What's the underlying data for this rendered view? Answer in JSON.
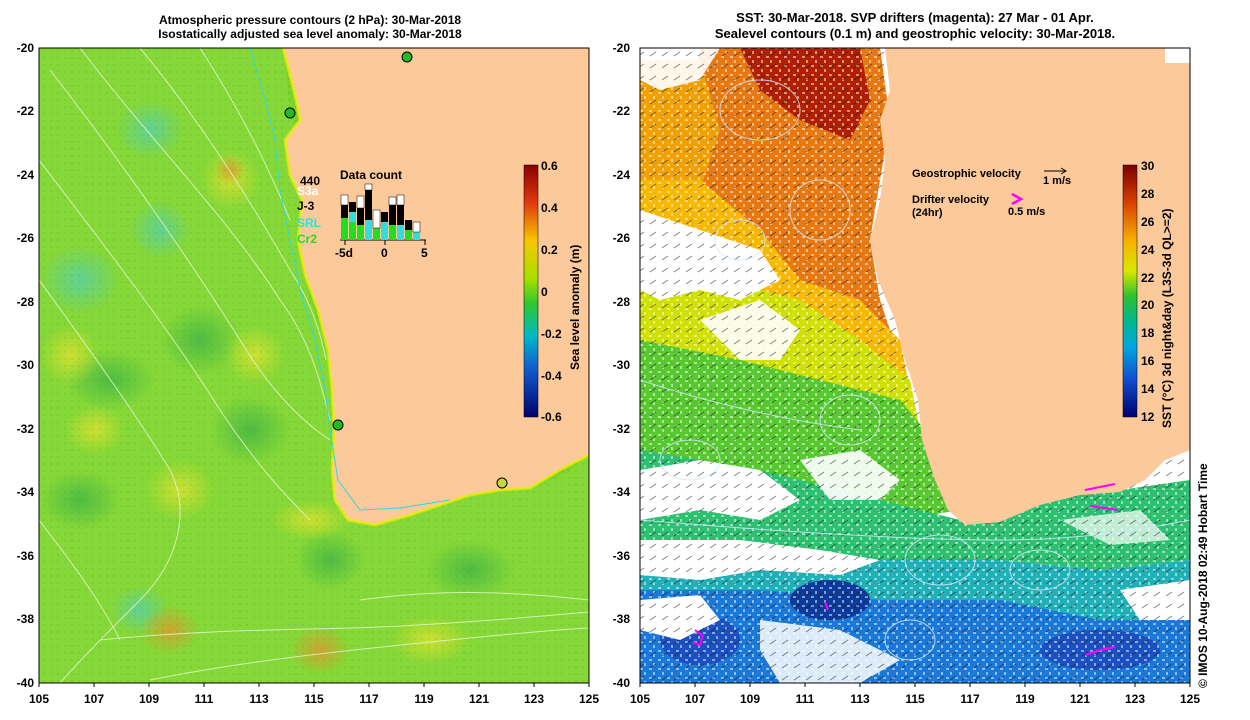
{
  "left_panel": {
    "title_line1": "Atmospheric pressure contours (2 hPa): 30-Mar-2018",
    "title_line2": "Isostatically adjusted sea level anomaly: 30-Mar-2018",
    "y_ticks": [
      "-20",
      "-22",
      "-24",
      "-26",
      "-28",
      "-30",
      "-32",
      "-34",
      "-36",
      "-38",
      "-40"
    ],
    "x_ticks": [
      "105",
      "107",
      "109",
      "111",
      "113",
      "115",
      "117",
      "119",
      "121",
      "123",
      "125"
    ],
    "colorbar": {
      "title": "Sea level anomaly (m)",
      "labels": [
        "0.6",
        "0.4",
        "0.2",
        "0",
        "-0.2",
        "-0.4",
        "-0.6"
      ]
    },
    "data_count": {
      "title": "Data count",
      "total": "440",
      "missions": [
        "S3a",
        "J-3",
        "SRL",
        "Cr2"
      ],
      "axis_labels": [
        "-5d",
        "0",
        "5"
      ]
    }
  },
  "right_panel": {
    "title_line1": "SST: 30-Mar-2018. SVP drifters (magenta): 27 Mar - 01 Apr.",
    "title_line2": "Sealevel contours (0.1 m) and geostrophic velocity: 30-Mar-2018.",
    "y_ticks": [
      "-20",
      "-22",
      "-24",
      "-26",
      "-28",
      "-30",
      "-32",
      "-34",
      "-36",
      "-38",
      "-40"
    ],
    "x_ticks": [
      "105",
      "107",
      "109",
      "111",
      "113",
      "115",
      "117",
      "119",
      "121",
      "123",
      "125"
    ],
    "colorbar": {
      "title": "SST (°C) 3d night&day (L3S-3d QL>=2)",
      "labels": [
        "30",
        "28",
        "26",
        "24",
        "22",
        "20",
        "18",
        "16",
        "14",
        "12"
      ]
    },
    "legend": {
      "geo_label": "Geostrophic velocity",
      "geo_scale": "1 m/s",
      "drifter_label_1": "Drifter velocity",
      "drifter_label_2": "(24hr)",
      "drifter_scale": "0.5 m/s"
    }
  },
  "credit": "© IMOS 10-Aug-2018 02:49 Hobart Time",
  "colors": {
    "land": "#fbc99a",
    "drifter": "#ff00ff",
    "background": "#ffffff"
  }
}
